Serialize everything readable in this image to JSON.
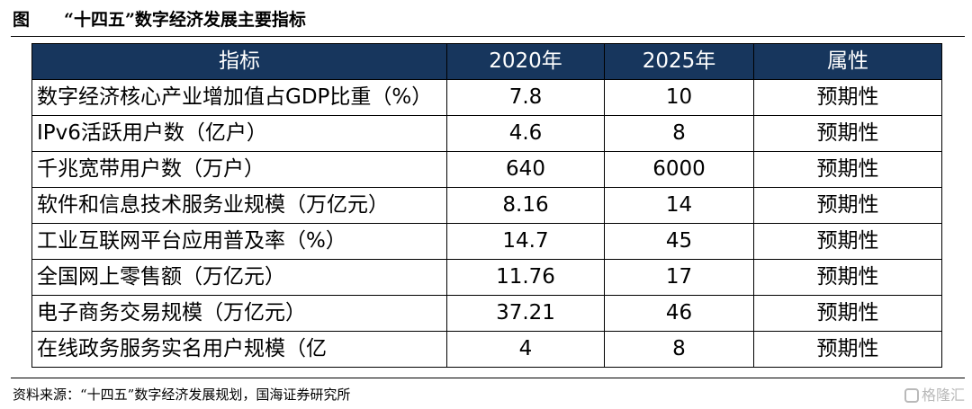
{
  "figure": {
    "label": "图",
    "title": "“十四五”数字经济发展主要指标"
  },
  "table": {
    "headers": [
      "指标",
      "2020年",
      "2025年",
      "属性"
    ],
    "rows": [
      [
        "数字经济核心产业增加值占GDP比重（%）",
        "7.8",
        "10",
        "预期性"
      ],
      [
        "IPv6活跃用户数（亿户）",
        "4.6",
        "8",
        "预期性"
      ],
      [
        "千兆宽带用户数（万户）",
        "640",
        "6000",
        "预期性"
      ],
      [
        "软件和信息技术服务业规模（万亿元）",
        "8.16",
        "14",
        "预期性"
      ],
      [
        "工业互联网平台应用普及率（%）",
        "14.7",
        "45",
        "预期性"
      ],
      [
        "全国网上零售额（万亿元）",
        "11.76",
        "17",
        "预期性"
      ],
      [
        "电子商务交易规模（万亿元）",
        "37.21",
        "46",
        "预期性"
      ],
      [
        "在线政务服务实名用户规模（亿",
        "4",
        "8",
        "预期性"
      ]
    ]
  },
  "source": "资料来源：“十四五”数字经济发展规划，国海证券研究所",
  "watermark": {
    "icon": "gelonghui-logo-icon",
    "text": "格隆汇"
  },
  "colors": {
    "header_bg": "#17365d",
    "header_text": "#ffffff",
    "watermark": "#b9b9b9"
  }
}
